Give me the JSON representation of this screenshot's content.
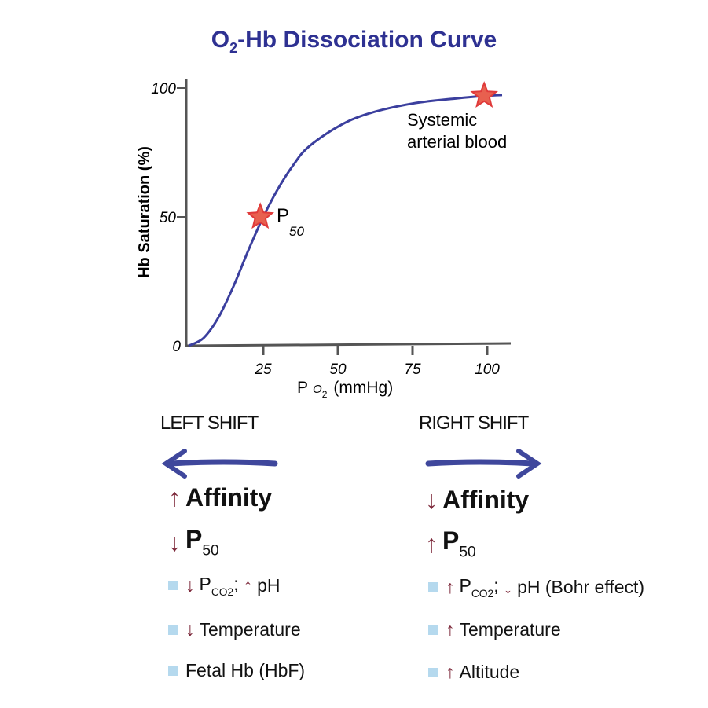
{
  "title_main": "O",
  "title_sub": "2",
  "title_rest": "-Hb Dissociation Curve",
  "chart_data": {
    "type": "line",
    "title": "O2-Hb Dissociation Curve",
    "xlabel": "P O2 (mmHg)",
    "xlabel_parts": {
      "main": "P",
      "sub": "O",
      "subsub": "2",
      "unit": "(mmHg)"
    },
    "ylabel": "Hb Saturation (%)",
    "xlim": [
      0,
      105
    ],
    "ylim": [
      0,
      100
    ],
    "xticks": [
      "25",
      "50",
      "75",
      "100"
    ],
    "xtick_values": [
      25,
      50,
      75,
      100
    ],
    "yticks": [
      "0",
      "50",
      "100"
    ],
    "ytick_values": [
      0,
      50,
      100
    ],
    "grid": false,
    "series": [
      {
        "color": "#3b3f9e",
        "x": [
          0,
          5,
          10,
          15,
          20,
          25,
          30,
          35,
          40,
          50,
          60,
          75,
          90,
          100,
          105
        ],
        "y": [
          0,
          3,
          11,
          23,
          37,
          50,
          61,
          70,
          77,
          85,
          90,
          94,
          96,
          97,
          97.3
        ]
      }
    ],
    "annotations": [
      {
        "label": "P",
        "sub": "50",
        "x": 24,
        "y": 50,
        "marker": "star"
      },
      {
        "label": "Systemic arterial blood",
        "line1": "Systemic",
        "line2": "arterial blood",
        "x": 99,
        "y": 97,
        "marker": "star"
      }
    ],
    "star_color": "#e8604f"
  },
  "colors": {
    "title": "#2e3192",
    "shift_arrow": "#3f479c",
    "change_arrow": "#7b2638",
    "bullet": "#b5d9ee"
  },
  "left": {
    "heading": "LEFT SHIFT",
    "affinity": {
      "arrow": "↑",
      "label": "Affinity"
    },
    "p50": {
      "arrow": "↓",
      "label": "P",
      "sub": "50"
    },
    "items": [
      {
        "arrow": "↓",
        "label": "P",
        "sub": "CO2",
        "sep": ";",
        "arrow2": "↑",
        "label2": "pH"
      },
      {
        "arrow": "↓",
        "label": "Temperature"
      },
      {
        "label": "Fetal Hb (HbF)"
      }
    ]
  },
  "right": {
    "heading": "RIGHT SHIFT",
    "affinity": {
      "arrow": "↓",
      "label": "Affinity"
    },
    "p50": {
      "arrow": "↑",
      "label": "P",
      "sub": "50"
    },
    "items": [
      {
        "arrow": "↑",
        "label": "P",
        "sub": "CO2",
        "sep": ";",
        "arrow2": "↓",
        "label2": "pH (Bohr effect)"
      },
      {
        "arrow": "↑",
        "label": "Temperature"
      },
      {
        "arrow": "↑",
        "label": "Altitude"
      }
    ]
  }
}
